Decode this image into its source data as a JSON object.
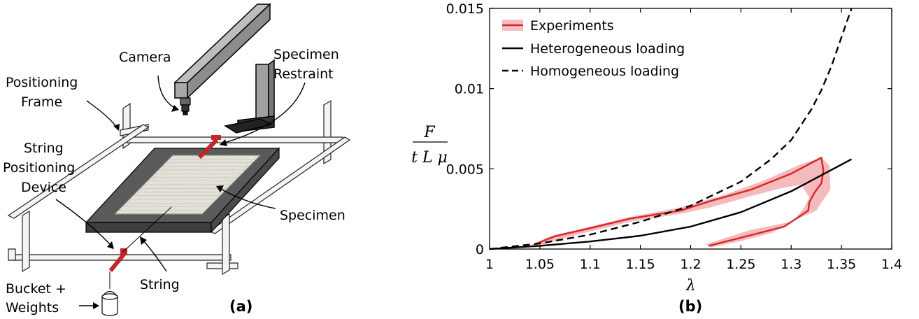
{
  "panel_a": {
    "label": "(a)",
    "annotations": {
      "camera": "Camera",
      "restraint_1": "Specimen",
      "restraint_2": "Restraint",
      "frame_1": "Positioning",
      "frame_2": "Frame",
      "device_1": "String",
      "device_2": "Positioning",
      "device_3": "Device",
      "specimen": "Specimen",
      "string": "String",
      "bucket_1": "Bucket +",
      "bucket_2": "Weights"
    },
    "colors": {
      "specimen": "#555555",
      "clamp": "#c0262c",
      "frame": "#f2f2f2",
      "camera": "#a6a6a6"
    }
  },
  "panel_b": {
    "label": "(b)",
    "ylabel_num": "F",
    "ylabel_den": "t L μ",
    "xlabel": "λ"
  },
  "chart_data": {
    "type": "line",
    "xlim": [
      1,
      1.4
    ],
    "ylim": [
      0,
      0.015
    ],
    "xticks": [
      "1",
      "1.05",
      "1.1",
      "1.15",
      "1.2",
      "1.25",
      "1.3",
      "1.35",
      "1.4"
    ],
    "yticks": [
      "0",
      "0.005",
      "0.01",
      "0.015"
    ],
    "legend_position": "top-left",
    "grid": false,
    "series": [
      {
        "name": "Experiments",
        "color": "#d62728",
        "style": "solid",
        "loading": [
          [
            1.045,
            0.0003
          ],
          [
            1.065,
            0.0008
          ],
          [
            1.1,
            0.0013
          ],
          [
            1.14,
            0.0019
          ],
          [
            1.19,
            0.0024
          ],
          [
            1.22,
            0.003
          ],
          [
            1.26,
            0.0037
          ],
          [
            1.3,
            0.0047
          ],
          [
            1.33,
            0.0057
          ]
        ],
        "unloading": [
          [
            1.33,
            0.0057
          ],
          [
            1.332,
            0.0049
          ],
          [
            1.33,
            0.0041
          ],
          [
            1.323,
            0.0035
          ],
          [
            1.318,
            0.0029
          ],
          [
            1.317,
            0.0024
          ],
          [
            1.293,
            0.0014
          ],
          [
            1.262,
            0.0009
          ],
          [
            1.218,
            0.0002
          ]
        ],
        "band_upper": [
          [
            1.04,
            0.0002
          ],
          [
            1.06,
            0.0008
          ],
          [
            1.1,
            0.0014
          ],
          [
            1.14,
            0.002
          ],
          [
            1.19,
            0.0026
          ],
          [
            1.23,
            0.0033
          ],
          [
            1.27,
            0.0042
          ],
          [
            1.31,
            0.0053
          ],
          [
            1.33,
            0.0057
          ],
          [
            1.338,
            0.0052
          ],
          [
            1.339,
            0.0037
          ],
          [
            1.33,
            0.0029
          ],
          [
            1.325,
            0.0024
          ],
          [
            1.3,
            0.0017
          ],
          [
            1.26,
            0.0012
          ],
          [
            1.215,
            0.0003
          ]
        ],
        "band_lower": [
          [
            1.045,
            0.0001
          ],
          [
            1.07,
            0.0006
          ],
          [
            1.1,
            0.0011
          ],
          [
            1.14,
            0.0017
          ],
          [
            1.19,
            0.0022
          ],
          [
            1.22,
            0.0026
          ],
          [
            1.26,
            0.0033
          ],
          [
            1.29,
            0.0038
          ],
          [
            1.31,
            0.004
          ],
          [
            1.318,
            0.0032
          ],
          [
            1.312,
            0.0025
          ],
          [
            1.3,
            0.0016
          ],
          [
            1.28,
            0.001
          ],
          [
            1.25,
            0.0005
          ],
          [
            1.22,
            0.0001
          ]
        ]
      },
      {
        "name": "Heterogeneous loading",
        "color": "#000000",
        "style": "solid",
        "x": [
          1.0,
          1.05,
          1.1,
          1.15,
          1.2,
          1.25,
          1.3,
          1.36
        ],
        "y": [
          0.0,
          0.0002,
          0.00047,
          0.00083,
          0.0014,
          0.0023,
          0.0036,
          0.0056
        ]
      },
      {
        "name": "Homogeneous loading",
        "color": "#000000",
        "style": "dashed",
        "x": [
          1.0,
          1.05,
          1.1,
          1.15,
          1.2,
          1.25,
          1.28,
          1.3,
          1.32,
          1.33,
          1.34,
          1.35,
          1.36
        ],
        "y": [
          0.0,
          0.00035,
          0.0009,
          0.0017,
          0.0027,
          0.0042,
          0.0056,
          0.0068,
          0.0087,
          0.0099,
          0.0114,
          0.0132,
          0.015
        ]
      }
    ]
  }
}
